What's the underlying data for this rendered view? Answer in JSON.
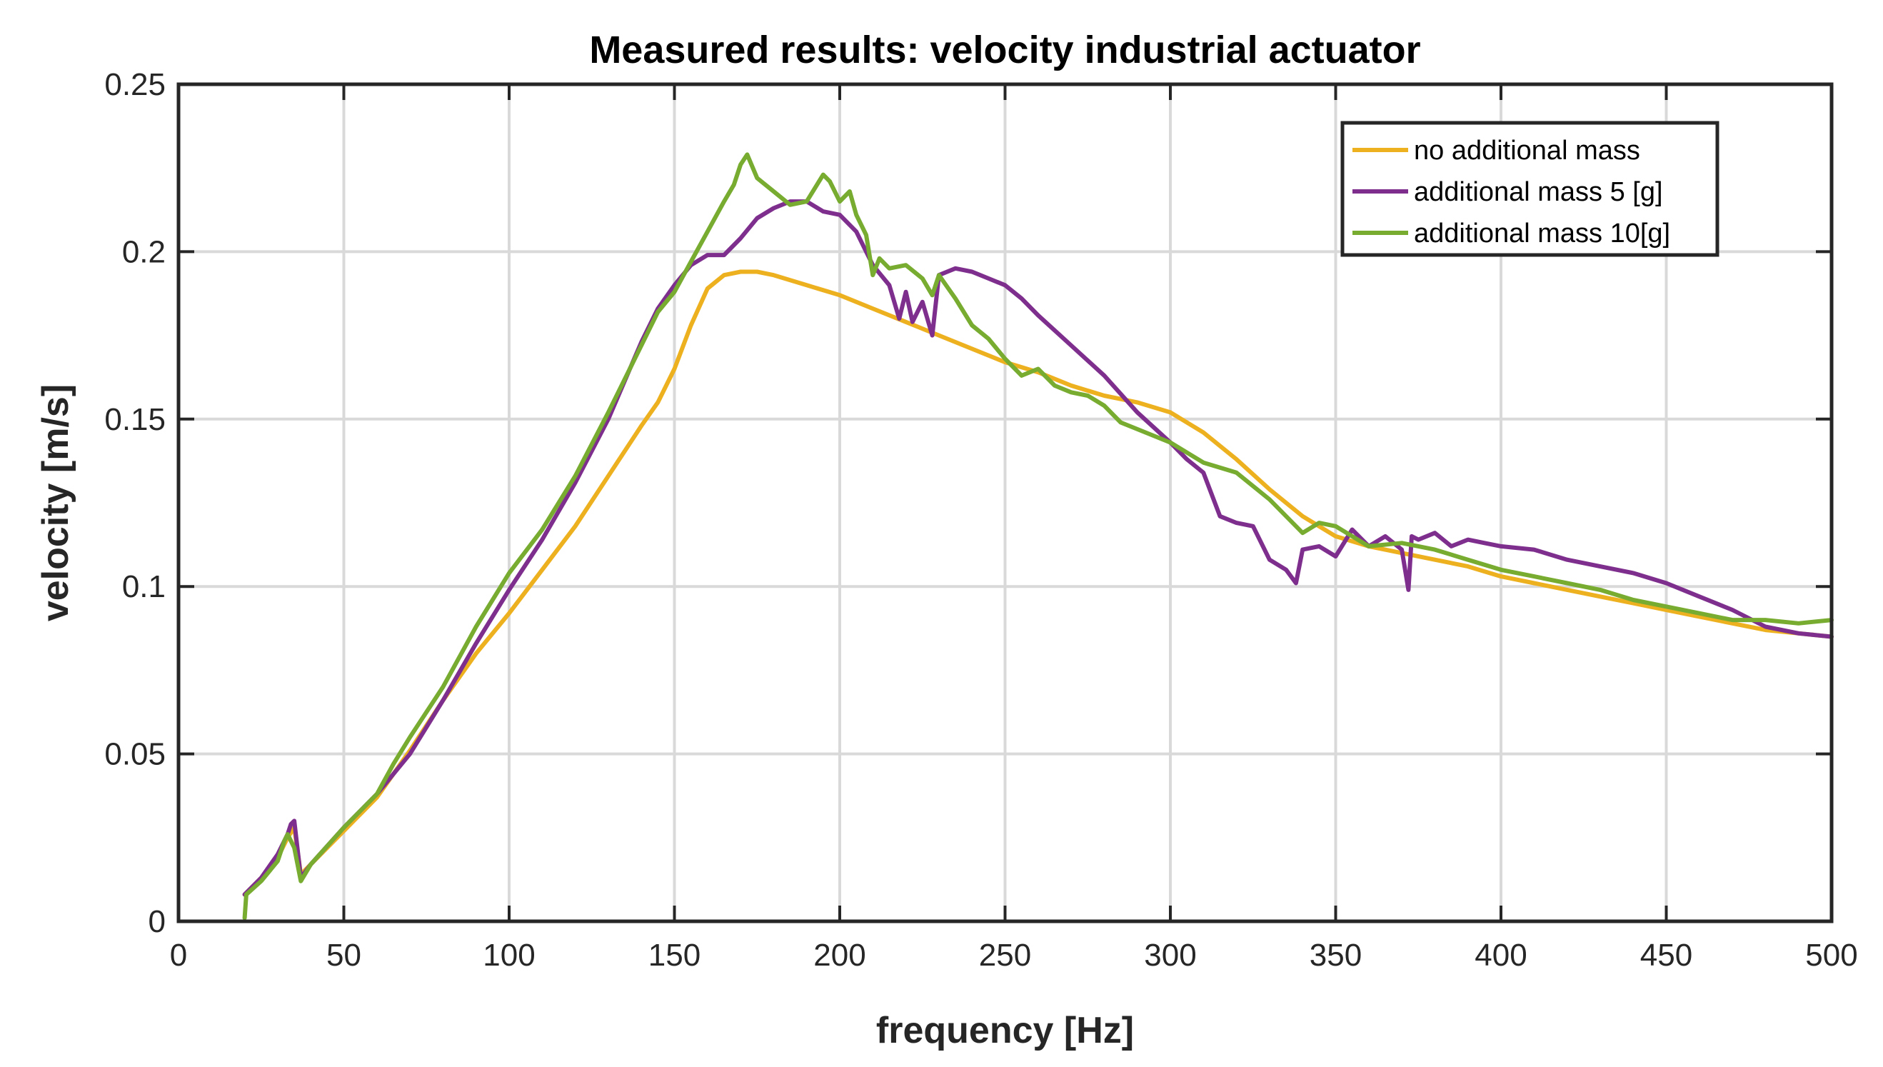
{
  "chart_data": {
    "type": "line",
    "title": "Measured results: velocity industrial actuator",
    "xlabel": "frequency [Hz]",
    "ylabel": "velocity [m/s]",
    "xlim": [
      0,
      500
    ],
    "ylim": [
      0,
      0.25
    ],
    "grid": true,
    "legend_position": "top-right",
    "x_ticks": [
      0,
      50,
      100,
      150,
      200,
      250,
      300,
      350,
      400,
      450,
      500
    ],
    "x_tick_labels": [
      "0",
      "50",
      "100",
      "150",
      "200",
      "250",
      "300",
      "350",
      "400",
      "450",
      "500"
    ],
    "y_ticks": [
      0,
      0.05,
      0.1,
      0.15,
      0.2,
      0.25
    ],
    "y_tick_labels": [
      "0",
      "0.05",
      "0.1",
      "0.15",
      "0.2",
      "0.25"
    ],
    "series": [
      {
        "name": "no additional mass",
        "color": "#EDB120",
        "x": [
          20,
          25,
          30,
          33,
          35,
          37,
          40,
          50,
          60,
          70,
          80,
          90,
          100,
          110,
          120,
          130,
          140,
          145,
          150,
          155,
          160,
          165,
          170,
          175,
          180,
          190,
          200,
          210,
          220,
          230,
          240,
          250,
          260,
          270,
          280,
          290,
          300,
          310,
          320,
          330,
          340,
          350,
          360,
          370,
          380,
          390,
          400,
          410,
          420,
          430,
          440,
          450,
          460,
          470,
          480,
          490,
          500
        ],
        "y": [
          0.008,
          0.013,
          0.019,
          0.025,
          0.028,
          0.014,
          0.017,
          0.027,
          0.037,
          0.051,
          0.066,
          0.08,
          0.092,
          0.105,
          0.118,
          0.133,
          0.148,
          0.155,
          0.165,
          0.178,
          0.189,
          0.193,
          0.194,
          0.194,
          0.193,
          0.19,
          0.187,
          0.183,
          0.179,
          0.175,
          0.171,
          0.167,
          0.164,
          0.16,
          0.157,
          0.155,
          0.152,
          0.146,
          0.138,
          0.129,
          0.121,
          0.115,
          0.112,
          0.11,
          0.108,
          0.106,
          0.103,
          0.101,
          0.099,
          0.097,
          0.095,
          0.093,
          0.091,
          0.089,
          0.087,
          0.086,
          0.085
        ]
      },
      {
        "name": "additional mass 5 [g]",
        "color": "#7E2F8E",
        "x": [
          20,
          25,
          30,
          33,
          34,
          35,
          37,
          40,
          50,
          60,
          70,
          80,
          90,
          100,
          110,
          120,
          130,
          140,
          145,
          150,
          155,
          160,
          165,
          170,
          175,
          180,
          185,
          190,
          195,
          200,
          205,
          210,
          215,
          218,
          220,
          222,
          225,
          228,
          230,
          235,
          240,
          245,
          250,
          255,
          260,
          270,
          280,
          290,
          300,
          305,
          310,
          315,
          320,
          325,
          330,
          335,
          338,
          340,
          345,
          350,
          355,
          360,
          365,
          370,
          372,
          373,
          375,
          380,
          385,
          390,
          395,
          400,
          410,
          420,
          430,
          440,
          450,
          460,
          470,
          480,
          490,
          500
        ],
        "y": [
          0.008,
          0.013,
          0.02,
          0.026,
          0.029,
          0.03,
          0.013,
          0.017,
          0.028,
          0.038,
          0.05,
          0.066,
          0.083,
          0.099,
          0.114,
          0.131,
          0.15,
          0.173,
          0.183,
          0.19,
          0.196,
          0.199,
          0.199,
          0.204,
          0.21,
          0.213,
          0.215,
          0.215,
          0.212,
          0.211,
          0.206,
          0.196,
          0.19,
          0.18,
          0.188,
          0.179,
          0.185,
          0.175,
          0.193,
          0.195,
          0.194,
          0.192,
          0.19,
          0.186,
          0.181,
          0.172,
          0.163,
          0.152,
          0.143,
          0.138,
          0.134,
          0.121,
          0.119,
          0.118,
          0.108,
          0.105,
          0.101,
          0.111,
          0.112,
          0.109,
          0.117,
          0.112,
          0.115,
          0.111,
          0.099,
          0.115,
          0.114,
          0.116,
          0.112,
          0.114,
          0.113,
          0.112,
          0.111,
          0.108,
          0.106,
          0.104,
          0.101,
          0.097,
          0.093,
          0.088,
          0.086,
          0.085
        ]
      },
      {
        "name": "additional mass 10[g]",
        "color": "#77AC30",
        "x": [
          20,
          20.5,
          25,
          30,
          32,
          33,
          35,
          37,
          40,
          50,
          55,
          60,
          65,
          70,
          80,
          90,
          100,
          110,
          120,
          130,
          140,
          145,
          150,
          155,
          160,
          165,
          168,
          170,
          172,
          175,
          180,
          185,
          190,
          195,
          197,
          200,
          203,
          205,
          208,
          210,
          212,
          215,
          220,
          225,
          228,
          230,
          235,
          240,
          245,
          250,
          255,
          260,
          265,
          270,
          275,
          280,
          285,
          290,
          300,
          310,
          320,
          330,
          335,
          340,
          345,
          350,
          360,
          370,
          380,
          390,
          400,
          410,
          420,
          430,
          440,
          450,
          460,
          470,
          480,
          490,
          500
        ],
        "y": [
          0.001,
          0.008,
          0.012,
          0.018,
          0.024,
          0.026,
          0.022,
          0.012,
          0.017,
          0.028,
          0.033,
          0.038,
          0.047,
          0.055,
          0.07,
          0.088,
          0.104,
          0.117,
          0.133,
          0.152,
          0.172,
          0.182,
          0.188,
          0.197,
          0.206,
          0.215,
          0.22,
          0.226,
          0.229,
          0.222,
          0.218,
          0.214,
          0.215,
          0.223,
          0.221,
          0.215,
          0.218,
          0.211,
          0.205,
          0.193,
          0.198,
          0.195,
          0.196,
          0.192,
          0.187,
          0.193,
          0.186,
          0.178,
          0.174,
          0.168,
          0.163,
          0.165,
          0.16,
          0.158,
          0.157,
          0.154,
          0.149,
          0.147,
          0.143,
          0.137,
          0.134,
          0.126,
          0.121,
          0.116,
          0.119,
          0.118,
          0.112,
          0.113,
          0.111,
          0.108,
          0.105,
          0.103,
          0.101,
          0.099,
          0.096,
          0.094,
          0.092,
          0.09,
          0.09,
          0.089,
          0.09
        ]
      }
    ]
  }
}
